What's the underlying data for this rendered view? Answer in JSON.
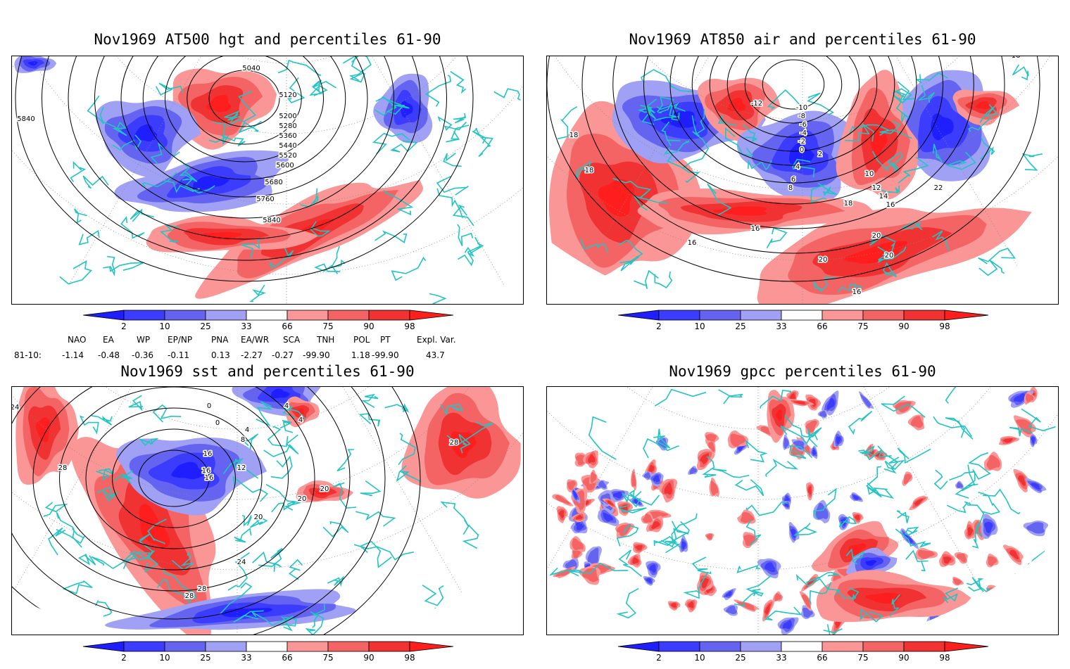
{
  "panels": [
    {
      "title": "Nov1969 AT500 hgt and percentiles 61-90",
      "contour_labels": [
        "5040",
        "5120",
        "5200",
        "5280",
        "5360",
        "5440",
        "5520",
        "5600",
        "5680",
        "5760",
        "5840",
        "5840"
      ]
    },
    {
      "title": "Nov1969 AT850 air and percentiles 61-90",
      "contour_labels": [
        "-12",
        "-10",
        "-8",
        "-6",
        "-4",
        "-2",
        "0",
        "2",
        "4",
        "6",
        "8",
        "10",
        "12",
        "14",
        "16",
        "16",
        "16",
        "16",
        "18",
        "18",
        "18",
        "20",
        "20",
        "20",
        "22",
        "16"
      ]
    },
    {
      "title": "Nov1969 sst and percentiles 61-90",
      "contour_labels": [
        "24",
        "28",
        "0",
        "0",
        "4",
        "4",
        "8",
        "4",
        "12",
        "16",
        "16",
        "16",
        "20",
        "20",
        "20",
        "24",
        "28",
        "28",
        "28"
      ]
    },
    {
      "title": "Nov1969 gpcc percentiles 61-90",
      "contour_labels": []
    }
  ],
  "colorbar": {
    "ticks": [
      "2",
      "10",
      "25",
      "33",
      "66",
      "75",
      "90",
      "98"
    ],
    "colors": [
      "#1e1eff",
      "#3c3cff",
      "#6464f0",
      "#a0a0f5",
      "#ffffff",
      "#fa9696",
      "#f56464",
      "#f03232",
      "#ff1e1e"
    ]
  },
  "teleconnections": {
    "row_label": "81-10:",
    "headers": [
      "NAO",
      "EA",
      "WP",
      "EP/NP",
      "PNA",
      "EA/WR",
      "SCA",
      "TNH",
      "POL",
      "PT",
      "Expl. Var."
    ],
    "values": [
      "-1.14",
      "-0.48",
      "-0.36",
      "-0.11",
      "0.13",
      "-2.27",
      "-0.27",
      "-99.90",
      "1.18",
      "-99.90",
      "43.7"
    ]
  },
  "style": {
    "coast_color": "#22c4c4",
    "grid_color": "#888888",
    "contour_color": "#000000"
  }
}
